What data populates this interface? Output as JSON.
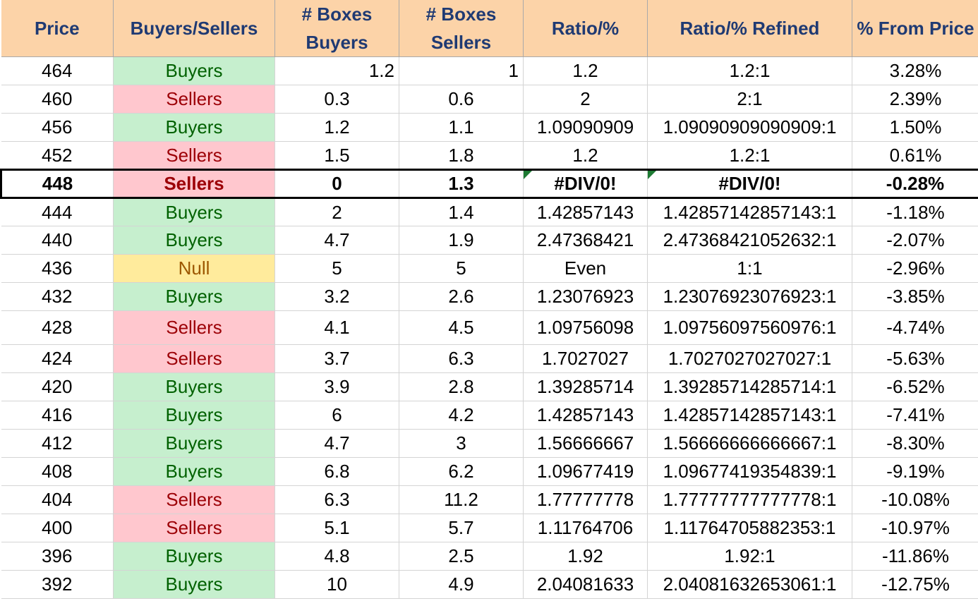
{
  "headers": [
    "Price",
    "Buyers/Sellers",
    "# Boxes Buyers",
    "# Boxes Sellers",
    "Ratio/%",
    "Ratio/% Refined",
    "% From Price"
  ],
  "rows": [
    {
      "price": "464",
      "side": "Buyers",
      "buyers": "1.2",
      "sellers": "1",
      "ratio": "1.2",
      "refined": "1.2:1",
      "pct": "3.28%"
    },
    {
      "price": "460",
      "side": "Sellers",
      "buyers": "0.3",
      "sellers": "0.6",
      "ratio": "2",
      "refined": "2:1",
      "pct": "2.39%"
    },
    {
      "price": "456",
      "side": "Buyers",
      "buyers": "1.2",
      "sellers": "1.1",
      "ratio": "1.09090909",
      "refined": "1.09090909090909:1",
      "pct": "1.50%"
    },
    {
      "price": "452",
      "side": "Sellers",
      "buyers": "1.5",
      "sellers": "1.8",
      "ratio": "1.2",
      "refined": "1.2:1",
      "pct": "0.61%"
    },
    {
      "price": "448",
      "side": "Sellers",
      "buyers": "0",
      "sellers": "1.3",
      "ratio": "#DIV/0!",
      "refined": "#DIV/0!",
      "pct": "-0.28%"
    },
    {
      "price": "444",
      "side": "Buyers",
      "buyers": "2",
      "sellers": "1.4",
      "ratio": "1.42857143",
      "refined": "1.42857142857143:1",
      "pct": "-1.18%"
    },
    {
      "price": "440",
      "side": "Buyers",
      "buyers": "4.7",
      "sellers": "1.9",
      "ratio": "2.47368421",
      "refined": "2.47368421052632:1",
      "pct": "-2.07%"
    },
    {
      "price": "436",
      "side": "Null",
      "buyers": "5",
      "sellers": "5",
      "ratio": "Even",
      "refined": "1:1",
      "pct": "-2.96%"
    },
    {
      "price": "432",
      "side": "Buyers",
      "buyers": "3.2",
      "sellers": "2.6",
      "ratio": "1.23076923",
      "refined": "1.23076923076923:1",
      "pct": "-3.85%"
    },
    {
      "price": "428",
      "side": "Sellers",
      "buyers": "4.1",
      "sellers": "4.5",
      "ratio": "1.09756098",
      "refined": "1.09756097560976:1",
      "pct": "-4.74%"
    },
    {
      "price": "424",
      "side": "Sellers",
      "buyers": "3.7",
      "sellers": "6.3",
      "ratio": "1.7027027",
      "refined": "1.7027027027027:1",
      "pct": "-5.63%"
    },
    {
      "price": "420",
      "side": "Buyers",
      "buyers": "3.9",
      "sellers": "2.8",
      "ratio": "1.39285714",
      "refined": "1.39285714285714:1",
      "pct": "-6.52%"
    },
    {
      "price": "416",
      "side": "Buyers",
      "buyers": "6",
      "sellers": "4.2",
      "ratio": "1.42857143",
      "refined": "1.42857142857143:1",
      "pct": "-7.41%"
    },
    {
      "price": "412",
      "side": "Buyers",
      "buyers": "4.7",
      "sellers": "3",
      "ratio": "1.56666667",
      "refined": "1.56666666666667:1",
      "pct": "-8.30%"
    },
    {
      "price": "408",
      "side": "Buyers",
      "buyers": "6.8",
      "sellers": "6.2",
      "ratio": "1.09677419",
      "refined": "1.09677419354839:1",
      "pct": "-9.19%"
    },
    {
      "price": "404",
      "side": "Sellers",
      "buyers": "6.3",
      "sellers": "11.2",
      "ratio": "1.77777778",
      "refined": "1.77777777777778:1",
      "pct": "-10.08%"
    },
    {
      "price": "400",
      "side": "Sellers",
      "buyers": "5.1",
      "sellers": "5.7",
      "ratio": "1.11764706",
      "refined": "1.11764705882353:1",
      "pct": "-10.97%"
    },
    {
      "price": "396",
      "side": "Buyers",
      "buyers": "4.8",
      "sellers": "2.5",
      "ratio": "1.92",
      "refined": "1.92:1",
      "pct": "-11.86%"
    },
    {
      "price": "392",
      "side": "Buyers",
      "buyers": "10",
      "sellers": "4.9",
      "ratio": "2.04081633",
      "refined": "2.04081632653061:1",
      "pct": "-12.75%"
    }
  ],
  "colors": {
    "header_bg": "#fcd3a8",
    "header_text": "#1f3a73",
    "buyers_bg": "#c6efce",
    "buyers_text": "#006100",
    "sellers_bg": "#ffc7ce",
    "sellers_text": "#9c0006",
    "null_bg": "#ffeb9c",
    "null_text": "#9c5700"
  }
}
